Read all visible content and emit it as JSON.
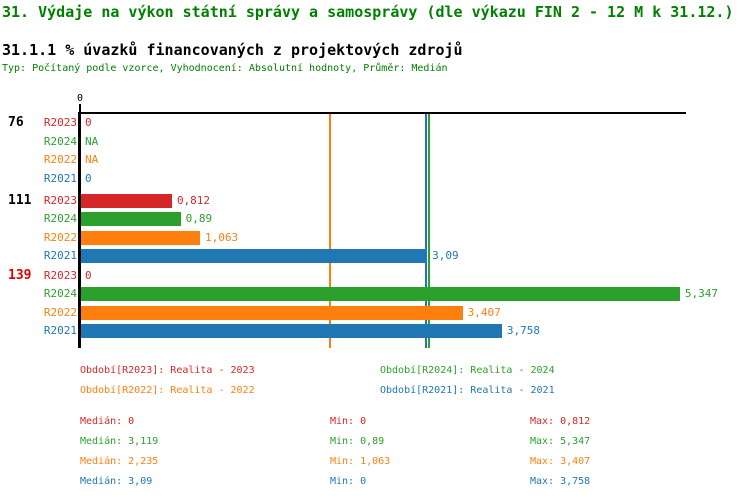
{
  "header": {
    "title": "31. Výdaje na výkon státní správy a samosprávy (dle výkazu FIN 2 - 12 M k 31.12.)",
    "subtitle": "31.1.1 % úvazků financovaných z projektových zdrojů",
    "meta": "Typ: Počítaný podle vzorce, Vyhodnocení: Absolutní hodnoty, Průměr: Medián"
  },
  "colors": {
    "R2023": "#d62728",
    "R2024": "#2ca02c",
    "R2022": "#ff7f0e",
    "R2021": "#1f77b4",
    "title_green": "#008000",
    "highlight_red": "#dd0000",
    "axis_black": "#000000"
  },
  "chart_data": {
    "type": "bar",
    "orientation": "horizontal",
    "value_axis": {
      "position": "top",
      "tick_labels": [
        "0"
      ],
      "origin": 0,
      "approx_max": 5.4,
      "grid": false
    },
    "series_order": [
      "R2023",
      "R2024",
      "R2022",
      "R2021"
    ],
    "groups": [
      {
        "label": "76",
        "label_color_key": "axis_black",
        "rows": [
          {
            "series": "R2023",
            "value": 0,
            "display": "0"
          },
          {
            "series": "R2024",
            "value": null,
            "display": "NA"
          },
          {
            "series": "R2022",
            "value": null,
            "display": "NA"
          },
          {
            "series": "R2021",
            "value": 0,
            "display": "0"
          }
        ]
      },
      {
        "label": "111",
        "label_color_key": "axis_black",
        "rows": [
          {
            "series": "R2023",
            "value": 0.812,
            "display": "0,812"
          },
          {
            "series": "R2024",
            "value": 0.89,
            "display": "0,89"
          },
          {
            "series": "R2022",
            "value": 1.063,
            "display": "1,063"
          },
          {
            "series": "R2021",
            "value": 3.09,
            "display": "3,09"
          }
        ]
      },
      {
        "label": "139",
        "label_color_key": "highlight_red",
        "rows": [
          {
            "series": "R2023",
            "value": 0,
            "display": "0"
          },
          {
            "series": "R2024",
            "value": 5.347,
            "display": "5,347"
          },
          {
            "series": "R2022",
            "value": 3.407,
            "display": "3,407"
          },
          {
            "series": "R2021",
            "value": 3.758,
            "display": "3,758"
          }
        ]
      }
    ],
    "median_lines": [
      {
        "series": "R2022",
        "value": 2.235
      },
      {
        "series": "R2021",
        "value": 3.09
      },
      {
        "series": "R2024",
        "value": 3.119
      }
    ],
    "legend": [
      {
        "series": "R2023",
        "label": "Období[R2023]: Realita - 2023"
      },
      {
        "series": "R2024",
        "label": "Období[R2024]: Realita - 2024"
      },
      {
        "series": "R2022",
        "label": "Období[R2022]: Realita - 2022"
      },
      {
        "series": "R2021",
        "label": "Období[R2021]: Realita - 2021"
      }
    ],
    "stats": [
      {
        "series": "R2023",
        "median": "Medián: 0",
        "min": "Min: 0",
        "max": "Max: 0,812"
      },
      {
        "series": "R2024",
        "median": "Medián: 3,119",
        "min": "Min: 0,89",
        "max": "Max: 5,347"
      },
      {
        "series": "R2022",
        "median": "Medián: 2,235",
        "min": "Min: 1,063",
        "max": "Max: 3,407"
      },
      {
        "series": "R2021",
        "median": "Medián: 3,09",
        "min": "Min: 0",
        "max": "Max: 3,758"
      }
    ]
  }
}
